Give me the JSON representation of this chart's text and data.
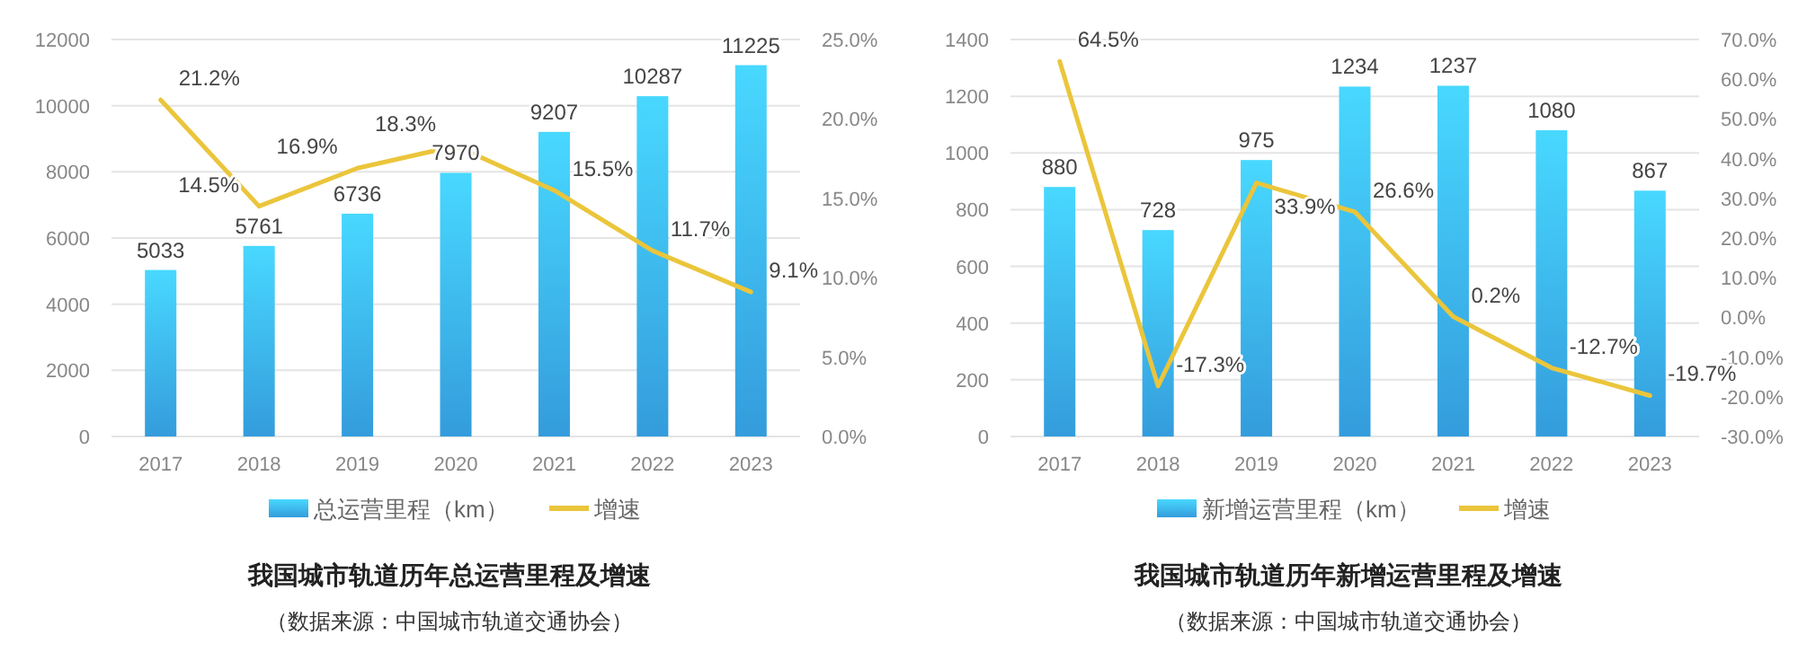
{
  "chart_data": [
    {
      "type": "bar",
      "title": "我国城市轨道历年总运营里程及增速",
      "annotations": [
        "（数据来源：中国城市轨道交通协会）"
      ],
      "categories": [
        "2017",
        "2018",
        "2019",
        "2020",
        "2021",
        "2022",
        "2023"
      ],
      "series": [
        {
          "name": "总运营里程（km）",
          "color": "#3aaef5",
          "values": [
            5033,
            5761,
            6736,
            7970,
            9207,
            10287,
            11225
          ],
          "value_labels": [
            "5033",
            "5761",
            "6736",
            "7970",
            "9207",
            "10287",
            "11225"
          ]
        },
        {
          "name": "增速",
          "type": "line",
          "axis": "y2",
          "color": "#ebc53b",
          "values": [
            21.2,
            14.5,
            16.9,
            18.3,
            15.5,
            11.7,
            9.1
          ],
          "value_labels": [
            "21.2%",
            "14.5%",
            "16.9%",
            "18.3%",
            "15.5%",
            "11.7%",
            "9.1%"
          ]
        }
      ],
      "ylim": [
        0,
        12000
      ],
      "yticks": [
        0,
        2000,
        4000,
        6000,
        8000,
        10000,
        12000
      ],
      "y2lim": [
        0,
        25
      ],
      "y2ticks": [
        {
          "value": 0,
          "label": "0.0%"
        },
        {
          "value": 5,
          "label": "5.0%"
        },
        {
          "value": 10,
          "label": "10.0%"
        },
        {
          "value": 15,
          "label": "15.0%"
        },
        {
          "value": 20,
          "label": "20.0%"
        },
        {
          "value": 25,
          "label": "25.0%"
        }
      ],
      "grid": "y",
      "legend": "bottom"
    },
    {
      "type": "bar",
      "title": "我国城市轨道历年新增运营里程及增速",
      "annotations": [
        "（数据来源：中国城市轨道交通协会）"
      ],
      "categories": [
        "2017",
        "2018",
        "2019",
        "2020",
        "2021",
        "2022",
        "2023"
      ],
      "series": [
        {
          "name": "新增运营里程（km）",
          "color": "#3aaef5",
          "values": [
            880,
            728,
            975,
            1234,
            1237,
            1080,
            867
          ],
          "value_labels": [
            "880",
            "728",
            "975",
            "1234",
            "1237",
            "1080",
            "867"
          ]
        },
        {
          "name": "增速",
          "type": "line",
          "axis": "y2",
          "color": "#ebc53b",
          "values": [
            64.5,
            -17.3,
            33.9,
            26.6,
            0.2,
            -12.7,
            -19.7
          ],
          "value_labels": [
            "64.5%",
            "-17.3%",
            "33.9%",
            "26.6%",
            "0.2%",
            "-12.7%",
            "-19.7%"
          ]
        }
      ],
      "ylim": [
        0,
        1400
      ],
      "yticks": [
        0,
        200,
        400,
        600,
        800,
        1000,
        1200,
        1400
      ],
      "y2lim": [
        -30,
        70
      ],
      "y2ticks": [
        {
          "value": -30,
          "label": "-30.0%"
        },
        {
          "value": -20,
          "label": "-20.0%"
        },
        {
          "value": -10,
          "label": "-10.0%"
        },
        {
          "value": 0,
          "label": "0.0%"
        },
        {
          "value": 10,
          "label": "10.0%"
        },
        {
          "value": 20,
          "label": "20.0%"
        },
        {
          "value": 30,
          "label": "30.0%"
        },
        {
          "value": 40,
          "label": "40.0%"
        },
        {
          "value": 50,
          "label": "50.0%"
        },
        {
          "value": 60,
          "label": "60.0%"
        },
        {
          "value": 70,
          "label": "70.0%"
        }
      ],
      "grid": "y",
      "legend": "bottom"
    }
  ]
}
